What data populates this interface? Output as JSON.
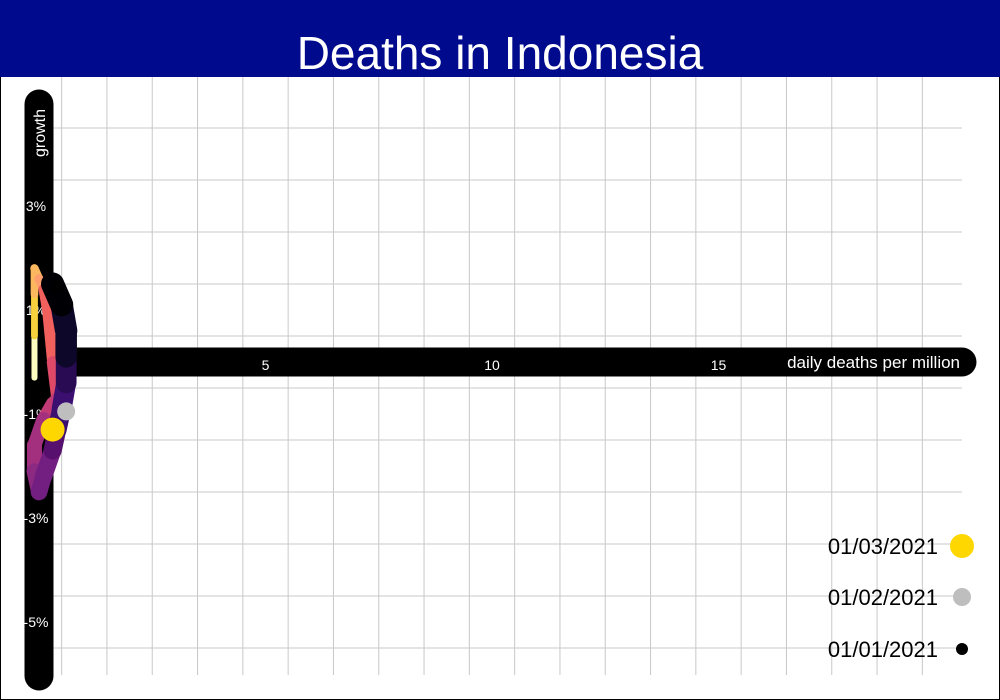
{
  "title": "Deaths in Indonesia",
  "colors": {
    "title_bg": "#000a8c",
    "title_text": "#ffffff",
    "grid": "#c8c8c8",
    "axis": "#000000",
    "marker_2021_03_01": "#ffd700",
    "marker_2021_02_01": "#bebebe",
    "marker_2021_01_01": "#000000"
  },
  "chart_data": {
    "type": "line",
    "title": "Deaths in Indonesia",
    "xlabel": "daily deaths per million",
    "ylabel": "growth",
    "xlim": [
      -0.6,
      19
    ],
    "ylim": [
      -6,
      5
    ],
    "x_ticks": [
      "5",
      "10",
      "15"
    ],
    "y_ticks": [
      "3%",
      "1%",
      "-1%",
      "-3%",
      "-5%"
    ],
    "grid": true,
    "legend_position": "bottom-right",
    "legend": [
      {
        "label": "01/03/2021",
        "color": "#ffd700"
      },
      {
        "label": "01/02/2021",
        "color": "#bebebe"
      },
      {
        "label": "01/01/2021",
        "color": "#000000"
      }
    ],
    "series": [
      {
        "values": [
          {
            "x": 0.3,
            "y": 1.5
          },
          {
            "x": 0.5,
            "y": 1.1
          },
          {
            "x": 0.6,
            "y": 0.6
          },
          {
            "x": 0.6,
            "y": 0.1
          },
          {
            "x": 0.6,
            "y": -0.4
          },
          {
            "x": 0.5,
            "y": -0.9
          },
          {
            "x": 0.4,
            "y": -1.3
          },
          {
            "x": 0.3,
            "y": -1.7
          },
          {
            "x": 0.1,
            "y": -2.2
          },
          {
            "x": 0.0,
            "y": -2.5
          },
          {
            "x": -0.1,
            "y": -2.1
          },
          {
            "x": -0.1,
            "y": -1.6
          },
          {
            "x": 0.1,
            "y": -1.1
          },
          {
            "x": 0.3,
            "y": -0.8
          },
          {
            "x": 0.4,
            "y": -0.7
          },
          {
            "x": 0.3,
            "y": 0.0
          },
          {
            "x": 0.2,
            "y": 0.9
          },
          {
            "x": 0.1,
            "y": 1.4
          },
          {
            "x": 0.0,
            "y": 1.6
          },
          {
            "x": -0.1,
            "y": 1.8
          },
          {
            "x": -0.1,
            "y": 1.3
          },
          {
            "x": -0.1,
            "y": 0.5
          },
          {
            "x": -0.1,
            "y": -0.3
          }
        ]
      }
    ],
    "markers": [
      {
        "date": "01/01/2021",
        "x": 0.4,
        "y": 1.45
      },
      {
        "date": "01/02/2021",
        "x": 0.6,
        "y": -0.95
      },
      {
        "date": "01/03/2021",
        "x": 0.3,
        "y": -1.3
      }
    ]
  }
}
